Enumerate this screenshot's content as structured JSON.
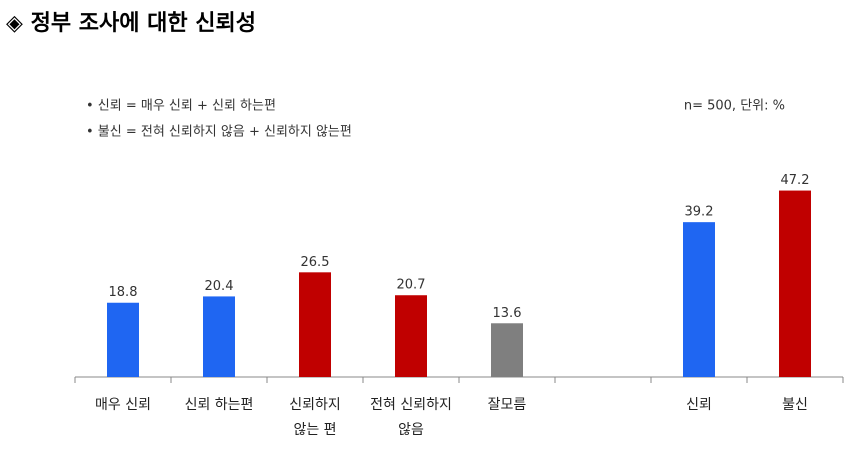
{
  "chart_data": {
    "type": "bar",
    "title": "◈ 정부 조사에 대한 신뢰성",
    "notes": [
      "• 신뢰 = 매우 신뢰 + 신뢰 하는편",
      "• 불신 = 전혀 신뢰하지 않음 + 신뢰하지 않는편"
    ],
    "sample_note": "n= 500, 단위: %",
    "categories": [
      [
        "매우 신뢰"
      ],
      [
        "신뢰 하는편"
      ],
      [
        "신뢰하지",
        "않는 편"
      ],
      [
        "전혀 신뢰하지",
        "않음"
      ],
      [
        "잘모름"
      ],
      null,
      [
        "신뢰"
      ],
      [
        "불신"
      ]
    ],
    "values": [
      18.8,
      20.4,
      26.5,
      20.7,
      13.6,
      null,
      39.2,
      47.2
    ],
    "colors": [
      "#1f66f2",
      "#1f66f2",
      "#c00000",
      "#c00000",
      "#7f7f7f",
      null,
      "#1f66f2",
      "#c00000"
    ]
  }
}
